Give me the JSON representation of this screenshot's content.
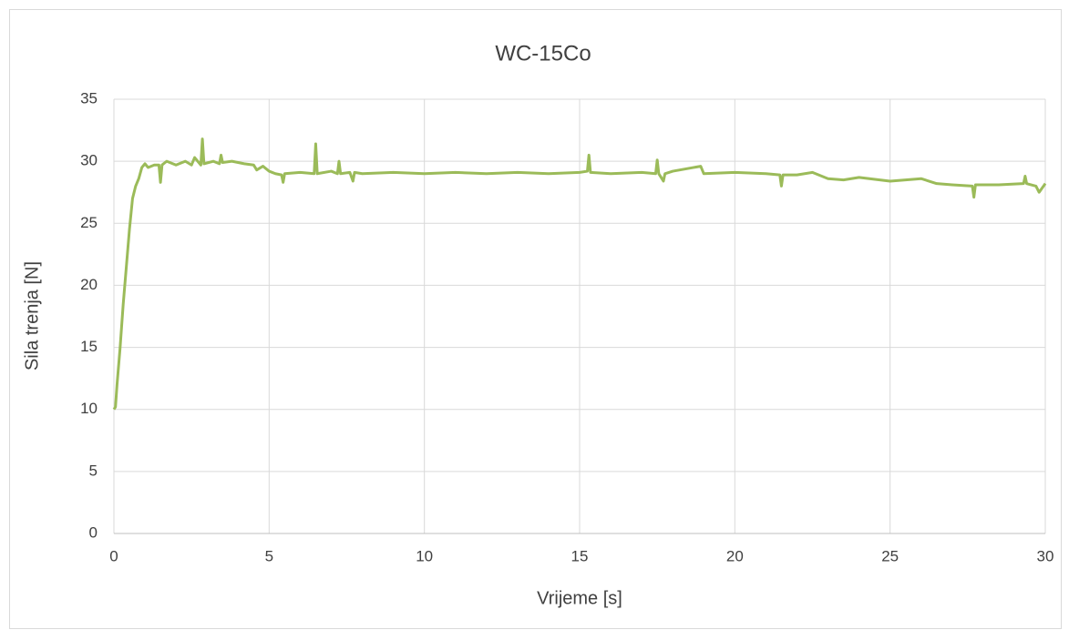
{
  "chart_data": {
    "type": "line",
    "title": "WC-15Co",
    "xlabel": "Vrijeme [s]",
    "ylabel": "Sila trenja [N]",
    "x": [
      0,
      0.05,
      0.1,
      0.2,
      0.3,
      0.4,
      0.5,
      0.6,
      0.7,
      0.8,
      0.9,
      1.0,
      1.1,
      1.3,
      1.45,
      1.5,
      1.55,
      1.7,
      2.0,
      2.3,
      2.5,
      2.6,
      2.8,
      2.85,
      2.9,
      3.2,
      3.4,
      3.45,
      3.5,
      3.8,
      4.2,
      4.5,
      4.6,
      4.8,
      5.0,
      5.2,
      5.4,
      5.45,
      5.5,
      6.0,
      6.45,
      6.5,
      6.55,
      7.0,
      7.2,
      7.25,
      7.3,
      7.6,
      7.7,
      7.75,
      8.0,
      9,
      10,
      11,
      12,
      13,
      14,
      15,
      15.25,
      15.3,
      15.35,
      16,
      17,
      17.45,
      17.5,
      17.55,
      17.7,
      17.75,
      18,
      18.9,
      19,
      20,
      21,
      21.45,
      21.5,
      21.55,
      22,
      22.5,
      23,
      23.5,
      24,
      25,
      26,
      26.5,
      27,
      27.65,
      27.7,
      27.75,
      28.5,
      29.3,
      29.35,
      29.4,
      29.7,
      29.8,
      30
    ],
    "series": [
      {
        "name": "WC-15Co",
        "color": "#9bbb59",
        "values": [
          10,
          10.2,
          12,
          15,
          18.5,
          21.5,
          24.5,
          27,
          28,
          28.6,
          29.5,
          29.8,
          29.5,
          29.7,
          29.7,
          28.3,
          29.7,
          30,
          29.7,
          30,
          29.7,
          30.3,
          29.7,
          31.8,
          29.8,
          30,
          29.8,
          30.5,
          29.9,
          30,
          29.8,
          29.7,
          29.3,
          29.6,
          29.2,
          29,
          28.9,
          28.3,
          29,
          29.1,
          29,
          31.4,
          29,
          29.2,
          29,
          30,
          29,
          29.1,
          28.4,
          29.1,
          29,
          29.1,
          29,
          29.1,
          29,
          29.1,
          29,
          29.1,
          29.2,
          30.5,
          29.1,
          29,
          29.1,
          29,
          30.1,
          29,
          28.4,
          29,
          29.2,
          29.6,
          29,
          29.1,
          29,
          28.9,
          28,
          28.9,
          28.9,
          29.1,
          28.6,
          28.5,
          28.7,
          28.4,
          28.6,
          28.2,
          28.1,
          28,
          27.1,
          28.1,
          28.1,
          28.2,
          28.8,
          28.2,
          28,
          27.5,
          28.2
        ]
      }
    ],
    "xlim": [
      0,
      30
    ],
    "xticks": [
      0,
      5,
      10,
      15,
      20,
      25,
      30
    ],
    "ylim": [
      0,
      35
    ],
    "yticks": [
      0,
      5,
      10,
      15,
      20,
      25,
      30,
      35
    ],
    "grid": true
  }
}
